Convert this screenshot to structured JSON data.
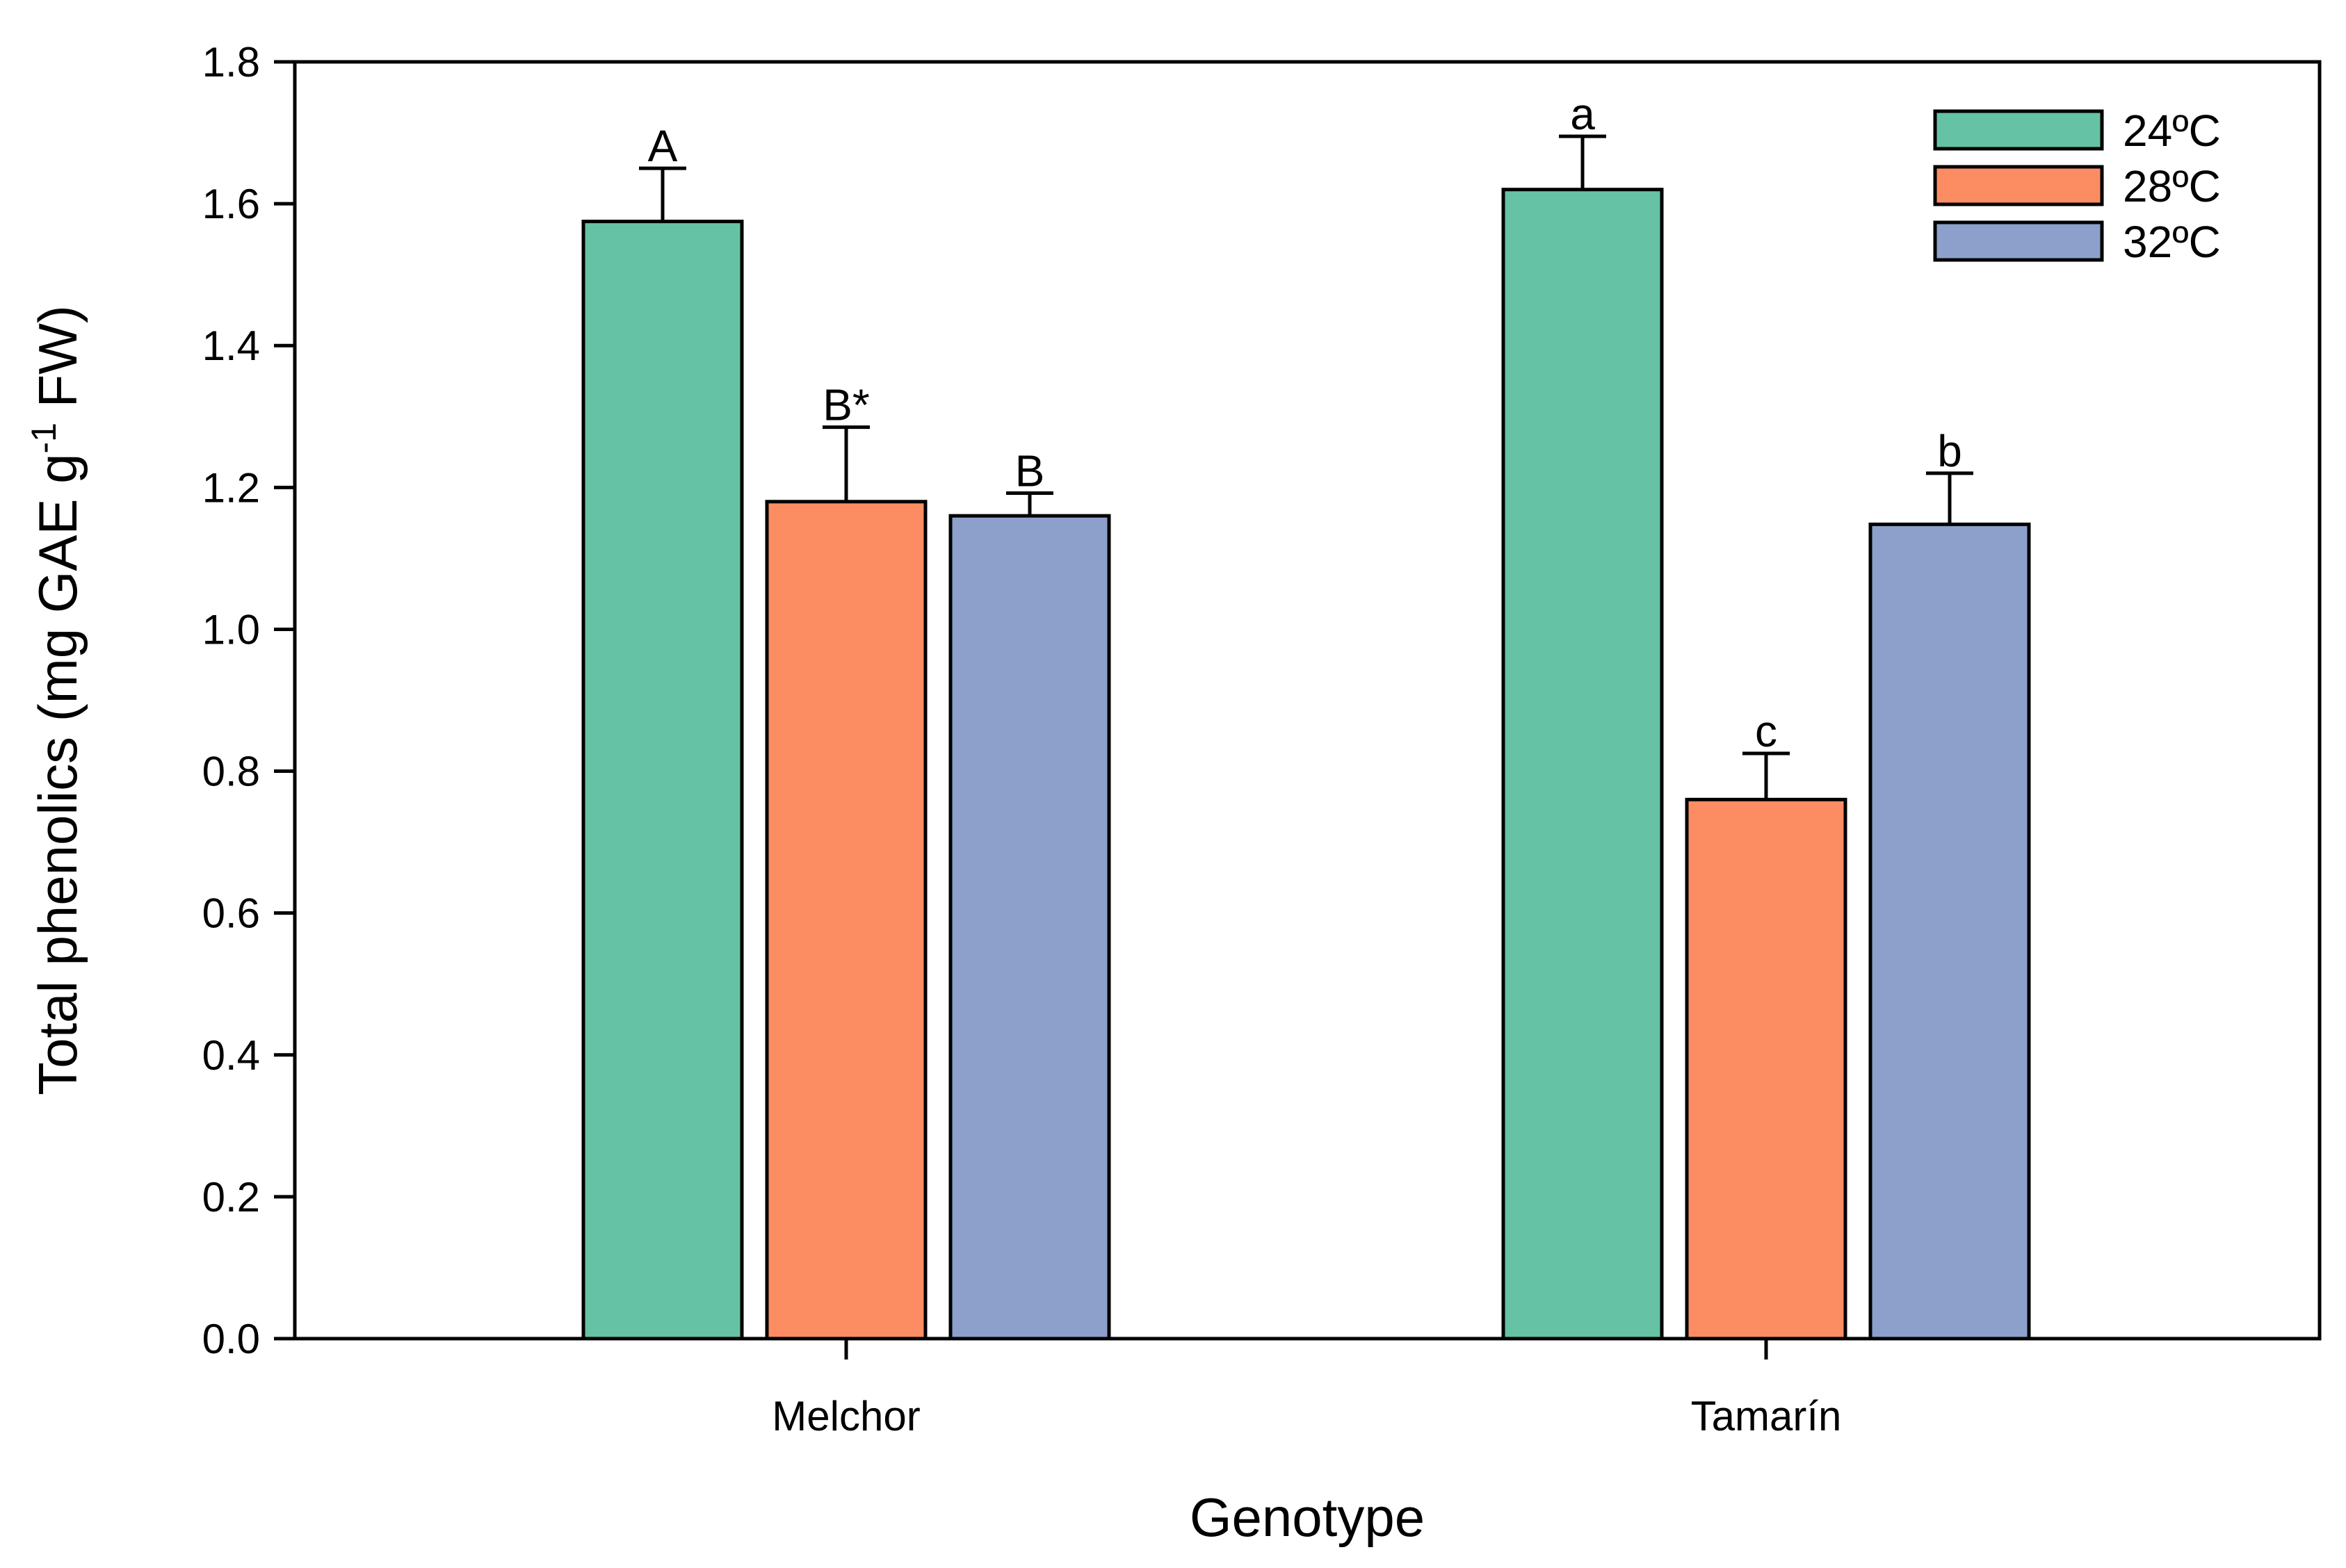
{
  "chart_data": {
    "type": "bar",
    "title": "",
    "xlabel": "Genotype",
    "ylabel_parts": {
      "main": "Total phenolics (mg GAE g",
      "sup": "-1",
      "tail": " FW)"
    },
    "ylim": [
      0,
      1.8
    ],
    "yticks": [
      "0.0",
      "0.2",
      "0.4",
      "0.6",
      "0.8",
      "1.0",
      "1.2",
      "1.4",
      "1.6",
      "1.8"
    ],
    "categories": [
      "Melchor",
      "Tamarín"
    ],
    "legend_position": "top-right",
    "series": [
      {
        "name": "24ºC",
        "color": "#66c2a5",
        "values": [
          1.575,
          1.62
        ],
        "errors": [
          0.075,
          0.075
        ],
        "labels": [
          "A",
          "a"
        ]
      },
      {
        "name": "28ºC",
        "color": "#fc8d62",
        "values": [
          1.18,
          0.76
        ],
        "errors": [
          0.105,
          0.065
        ],
        "labels": [
          "B*",
          "c"
        ]
      },
      {
        "name": "32ºC",
        "color": "#8da0cb",
        "values": [
          1.16,
          1.148
        ],
        "errors": [
          0.032,
          0.072
        ],
        "labels": [
          "B",
          "b"
        ]
      }
    ]
  }
}
